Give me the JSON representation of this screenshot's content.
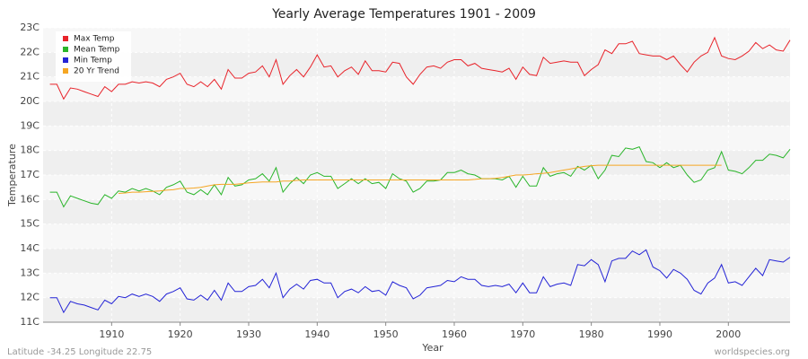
{
  "chart_data": {
    "type": "line",
    "title": "Yearly Average Temperatures 1901 - 2009",
    "x_label": "Year",
    "y_label": "Temperature",
    "footer_left": "Latitude -34.25 Longitude 22.75",
    "footer_right": "worldspecies.org",
    "legend": "top-left",
    "grid": true,
    "xlim": [
      1900,
      2009
    ],
    "xticks": [
      1910,
      1920,
      1930,
      1940,
      1950,
      1960,
      1970,
      1980,
      1990,
      2000
    ],
    "ylim": [
      11,
      23
    ],
    "yticks": [
      {
        "value": 11,
        "label": "11C"
      },
      {
        "value": 12,
        "label": "12C"
      },
      {
        "value": 13,
        "label": "13C"
      },
      {
        "value": 14,
        "label": "14C"
      },
      {
        "value": 15,
        "label": "15C"
      },
      {
        "value": 16,
        "label": "16C"
      },
      {
        "value": 17,
        "label": "17C"
      },
      {
        "value": 18,
        "label": "18C"
      },
      {
        "value": 19,
        "label": "19C"
      },
      {
        "value": 20,
        "label": "20C"
      },
      {
        "value": 21,
        "label": "21C"
      },
      {
        "value": 22,
        "label": "22C"
      },
      {
        "value": 23,
        "label": "23C"
      }
    ],
    "x": [
      1901,
      1902,
      1903,
      1904,
      1905,
      1906,
      1907,
      1908,
      1909,
      1910,
      1911,
      1912,
      1913,
      1914,
      1915,
      1916,
      1917,
      1918,
      1919,
      1920,
      1921,
      1922,
      1923,
      1924,
      1925,
      1926,
      1927,
      1928,
      1929,
      1930,
      1931,
      1932,
      1933,
      1934,
      1935,
      1936,
      1937,
      1938,
      1939,
      1940,
      1941,
      1942,
      1943,
      1944,
      1945,
      1946,
      1947,
      1948,
      1949,
      1950,
      1951,
      1952,
      1953,
      1954,
      1955,
      1956,
      1957,
      1958,
      1959,
      1960,
      1961,
      1962,
      1963,
      1964,
      1965,
      1966,
      1967,
      1968,
      1969,
      1970,
      1971,
      1972,
      1973,
      1974,
      1975,
      1976,
      1977,
      1978,
      1979,
      1980,
      1981,
      1982,
      1983,
      1984,
      1985,
      1986,
      1987,
      1988,
      1989,
      1990,
      1991,
      1992,
      1993,
      1994,
      1995,
      1996,
      1997,
      1998,
      1999,
      2000,
      2001,
      2002,
      2003,
      2004,
      2005,
      2006,
      2007,
      2008,
      2009
    ],
    "series": [
      {
        "name": "Max Temp",
        "color": "#e8232a",
        "values": [
          20.7,
          20.7,
          20.1,
          20.55,
          20.5,
          20.4,
          20.3,
          20.2,
          20.6,
          20.4,
          20.7,
          20.7,
          20.8,
          20.75,
          20.8,
          20.75,
          20.6,
          20.9,
          21.0,
          21.15,
          20.7,
          20.6,
          20.8,
          20.6,
          20.9,
          20.5,
          21.3,
          20.95,
          20.95,
          21.15,
          21.2,
          21.45,
          21.0,
          21.7,
          20.7,
          21.05,
          21.3,
          21.0,
          21.4,
          21.9,
          21.4,
          21.45,
          21.0,
          21.25,
          21.4,
          21.1,
          21.65,
          21.25,
          21.25,
          21.2,
          21.6,
          21.55,
          21.0,
          20.7,
          21.1,
          21.4,
          21.45,
          21.35,
          21.6,
          21.7,
          21.7,
          21.45,
          21.55,
          21.35,
          21.3,
          21.25,
          21.2,
          21.35,
          20.9,
          21.4,
          21.1,
          21.05,
          21.8,
          21.55,
          21.6,
          21.65,
          21.6,
          21.6,
          21.05,
          21.3,
          21.5,
          22.1,
          21.95,
          22.35,
          22.35,
          22.45,
          21.95,
          21.9,
          21.85,
          21.85,
          21.7,
          21.85,
          21.5,
          21.2,
          21.6,
          21.85,
          22.0,
          22.6,
          21.85,
          21.75,
          21.7,
          21.85,
          22.05,
          22.4,
          22.15,
          22.3,
          22.1,
          22.05,
          22.5
        ]
      },
      {
        "name": "Mean Temp",
        "color": "#2ab52a",
        "values": [
          16.3,
          16.3,
          15.7,
          16.15,
          16.05,
          15.95,
          15.85,
          15.8,
          16.2,
          16.05,
          16.35,
          16.3,
          16.45,
          16.35,
          16.45,
          16.35,
          16.2,
          16.5,
          16.6,
          16.75,
          16.3,
          16.2,
          16.4,
          16.2,
          16.6,
          16.2,
          16.9,
          16.55,
          16.6,
          16.8,
          16.85,
          17.05,
          16.75,
          17.3,
          16.3,
          16.65,
          16.9,
          16.65,
          17.0,
          17.1,
          16.95,
          16.95,
          16.45,
          16.65,
          16.85,
          16.65,
          16.85,
          16.65,
          16.7,
          16.45,
          17.05,
          16.85,
          16.75,
          16.3,
          16.45,
          16.75,
          16.75,
          16.8,
          17.1,
          17.1,
          17.2,
          17.05,
          17.0,
          16.85,
          16.85,
          16.85,
          16.8,
          16.95,
          16.5,
          16.95,
          16.55,
          16.55,
          17.3,
          16.95,
          17.05,
          17.1,
          16.95,
          17.35,
          17.2,
          17.4,
          16.85,
          17.2,
          17.8,
          17.75,
          18.1,
          18.05,
          18.15,
          17.55,
          17.5,
          17.3,
          17.5,
          17.3,
          17.4,
          17.0,
          16.7,
          16.8,
          17.2,
          17.3,
          17.95,
          17.2,
          17.15,
          17.05,
          17.3,
          17.6,
          17.6,
          17.85,
          17.8,
          17.7,
          18.05
        ]
      },
      {
        "name": "Min Temp",
        "color": "#2323d6",
        "values": [
          12.0,
          12.0,
          11.4,
          11.85,
          11.75,
          11.7,
          11.6,
          11.5,
          11.9,
          11.75,
          12.05,
          12.0,
          12.15,
          12.05,
          12.15,
          12.05,
          11.85,
          12.15,
          12.25,
          12.4,
          11.95,
          11.9,
          12.1,
          11.9,
          12.3,
          11.9,
          12.6,
          12.25,
          12.25,
          12.45,
          12.5,
          12.75,
          12.4,
          13.0,
          12.0,
          12.35,
          12.55,
          12.35,
          12.7,
          12.75,
          12.6,
          12.6,
          12.0,
          12.25,
          12.35,
          12.2,
          12.45,
          12.25,
          12.3,
          12.1,
          12.65,
          12.5,
          12.4,
          11.95,
          12.1,
          12.4,
          12.45,
          12.5,
          12.7,
          12.65,
          12.85,
          12.75,
          12.75,
          12.5,
          12.45,
          12.5,
          12.45,
          12.55,
          12.2,
          12.6,
          12.2,
          12.2,
          12.85,
          12.45,
          12.55,
          12.6,
          12.5,
          13.35,
          13.3,
          13.55,
          13.35,
          12.65,
          13.5,
          13.6,
          13.6,
          13.9,
          13.75,
          13.95,
          13.25,
          13.1,
          12.8,
          13.15,
          13.0,
          12.75,
          12.3,
          12.15,
          12.6,
          12.8,
          13.35,
          12.6,
          12.65,
          12.5,
          12.85,
          13.2,
          12.9,
          13.55,
          13.5,
          13.45,
          13.65
        ]
      },
      {
        "name": "20 Yr Trend",
        "color": "#f5a623",
        "values": [
          null,
          null,
          null,
          null,
          null,
          null,
          null,
          null,
          null,
          null,
          16.25,
          16.27,
          16.3,
          16.3,
          16.32,
          16.33,
          16.35,
          16.38,
          16.4,
          16.45,
          16.45,
          16.47,
          16.5,
          16.55,
          16.6,
          16.62,
          16.62,
          16.62,
          16.65,
          16.68,
          16.7,
          16.72,
          16.72,
          16.72,
          16.75,
          16.75,
          16.78,
          16.8,
          16.8,
          16.8,
          16.8,
          16.8,
          16.8,
          16.8,
          16.8,
          16.8,
          16.8,
          16.8,
          16.8,
          16.8,
          16.8,
          16.8,
          16.8,
          16.8,
          16.8,
          16.8,
          16.8,
          16.8,
          16.8,
          16.8,
          16.8,
          16.8,
          16.82,
          16.85,
          16.85,
          16.87,
          16.9,
          16.95,
          17.0,
          17.0,
          17.02,
          17.05,
          17.07,
          17.1,
          17.15,
          17.2,
          17.25,
          17.3,
          17.35,
          17.38,
          17.4,
          17.4,
          17.4,
          17.4,
          17.4,
          17.4,
          17.4,
          17.4,
          17.4,
          17.4,
          17.4,
          17.4,
          17.4,
          17.4,
          17.4,
          17.4,
          17.4,
          17.4,
          17.4,
          null,
          null,
          null,
          null,
          null,
          null,
          null,
          null,
          null,
          null
        ]
      }
    ]
  }
}
